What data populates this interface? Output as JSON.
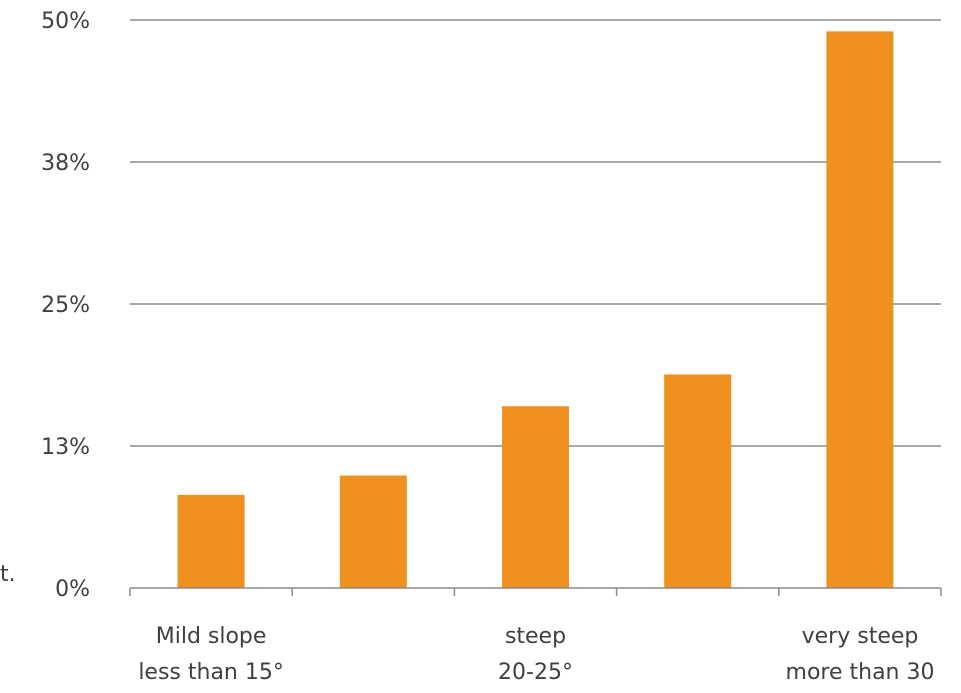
{
  "stray_text": "t.",
  "colors": {
    "bar": "#F0901E",
    "grid": "#8c8c8c",
    "axis": "#8c8c8c",
    "text": "#404040"
  },
  "chart_data": {
    "type": "bar",
    "categories": [
      "Mild slope less than 15°",
      "",
      "steep 20-25°",
      "",
      "very steep more than 30"
    ],
    "category_labels": [
      [
        "Mild slope",
        "less than 15°"
      ],
      [
        "",
        ""
      ],
      [
        "steep",
        "20-25°"
      ],
      [
        "",
        ""
      ],
      [
        "very steep",
        "more than 30"
      ]
    ],
    "values": [
      8.2,
      9.9,
      16.0,
      18.8,
      49.0
    ],
    "ylim": [
      0,
      50
    ],
    "yticks": [
      0,
      12.5,
      25,
      37.5,
      50
    ],
    "ytick_labels": [
      "0%",
      "13%",
      "25%",
      "38%",
      "50%"
    ],
    "grid": true,
    "legend": "none",
    "title": "",
    "xlabel": "",
    "ylabel": ""
  }
}
